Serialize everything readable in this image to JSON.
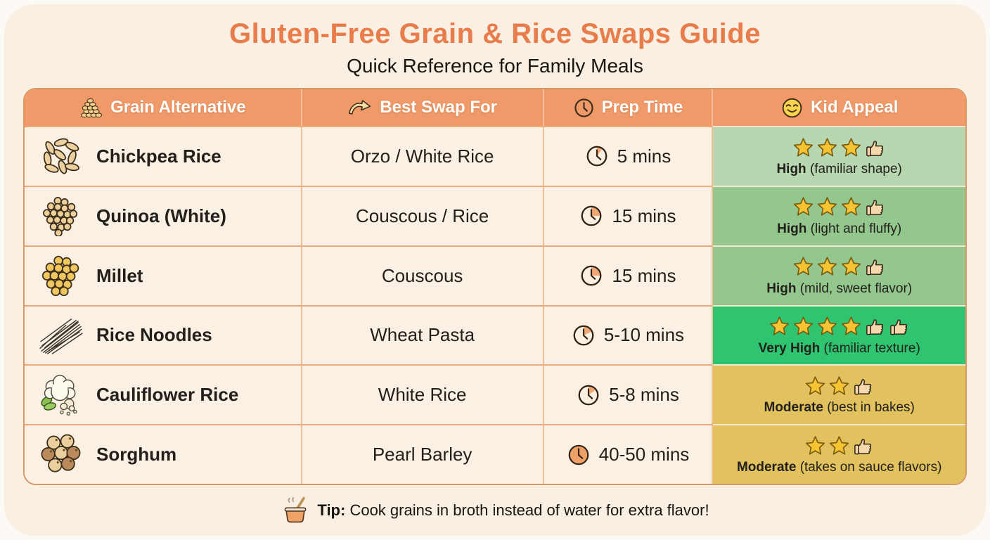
{
  "header": {
    "title": "Gluten-Free Grain & Rice Swaps Guide",
    "subtitle": "Quick Reference for Family Meals"
  },
  "chart_data": {
    "type": "table",
    "columns": [
      {
        "label": "Grain Alternative",
        "icon": "grain-stack-icon"
      },
      {
        "label": "Best Swap For",
        "icon": "swap-arrow-icon"
      },
      {
        "label": "Prep Time",
        "icon": "clock-icon"
      },
      {
        "label": "Kid Appeal",
        "icon": "smiley-icon"
      }
    ],
    "rows": [
      {
        "grain": "Chickpea Rice",
        "grain_icon": "chickpea-rice-icon",
        "swap": "Orzo / White Rice",
        "prep_time": "5 mins",
        "clock_fraction": 0.1,
        "stars": 3,
        "thumbs": 1,
        "appeal_level": "High",
        "appeal_note": "(familiar shape)",
        "appeal_color": "#b6d7af"
      },
      {
        "grain": "Quinoa (White)",
        "grain_icon": "quinoa-icon",
        "swap": "Couscous / Rice",
        "prep_time": "15 mins",
        "clock_fraction": 0.25,
        "stars": 3,
        "thumbs": 1,
        "appeal_level": "High",
        "appeal_note": "(light and fluffy)",
        "appeal_color": "#93c78d"
      },
      {
        "grain": "Millet",
        "grain_icon": "millet-icon",
        "swap": "Couscous",
        "prep_time": "15 mins",
        "clock_fraction": 0.25,
        "stars": 3,
        "thumbs": 1,
        "appeal_level": "High",
        "appeal_note": "(mild, sweet flavor)",
        "appeal_color": "#93c78d"
      },
      {
        "grain": "Rice Noodles",
        "grain_icon": "rice-noodles-icon",
        "swap": "Wheat Pasta",
        "prep_time": "5-10 mins",
        "clock_fraction": 0.18,
        "stars": 4,
        "thumbs": 2,
        "appeal_level": "Very High",
        "appeal_note": "(familiar texture)",
        "appeal_color": "#2ec470"
      },
      {
        "grain": "Cauliflower Rice",
        "grain_icon": "cauliflower-rice-icon",
        "swap": "White Rice",
        "prep_time": "5-8 mins",
        "clock_fraction": 0.15,
        "stars": 2,
        "thumbs": 1,
        "appeal_level": "Moderate",
        "appeal_note": "(best in bakes)",
        "appeal_color": "#e2c25f"
      },
      {
        "grain": "Sorghum",
        "grain_icon": "sorghum-icon",
        "swap": "Pearl Barley",
        "prep_time": "40-50 mins",
        "clock_fraction": 1,
        "stars": 2,
        "thumbs": 1,
        "appeal_level": "Moderate",
        "appeal_note": "(takes on sauce flavors)",
        "appeal_color": "#e2c25f"
      }
    ]
  },
  "footer": {
    "icon": "cooking-pot-icon",
    "tip_label": "Tip:",
    "tip_text": "Cook grains in broth instead of water for extra flavor!"
  },
  "colors": {
    "page_bg": "#fdfaf5",
    "card_bg": "#f9efe2",
    "title": "#e87d4b",
    "header_bg": "#f09a6a",
    "header_text": "#ffffff",
    "cell_bg": "#faf1e4",
    "grid_line": "#eda97b",
    "outer_border": "#dd9763",
    "star": "#f6c433",
    "text": "#23201c"
  }
}
